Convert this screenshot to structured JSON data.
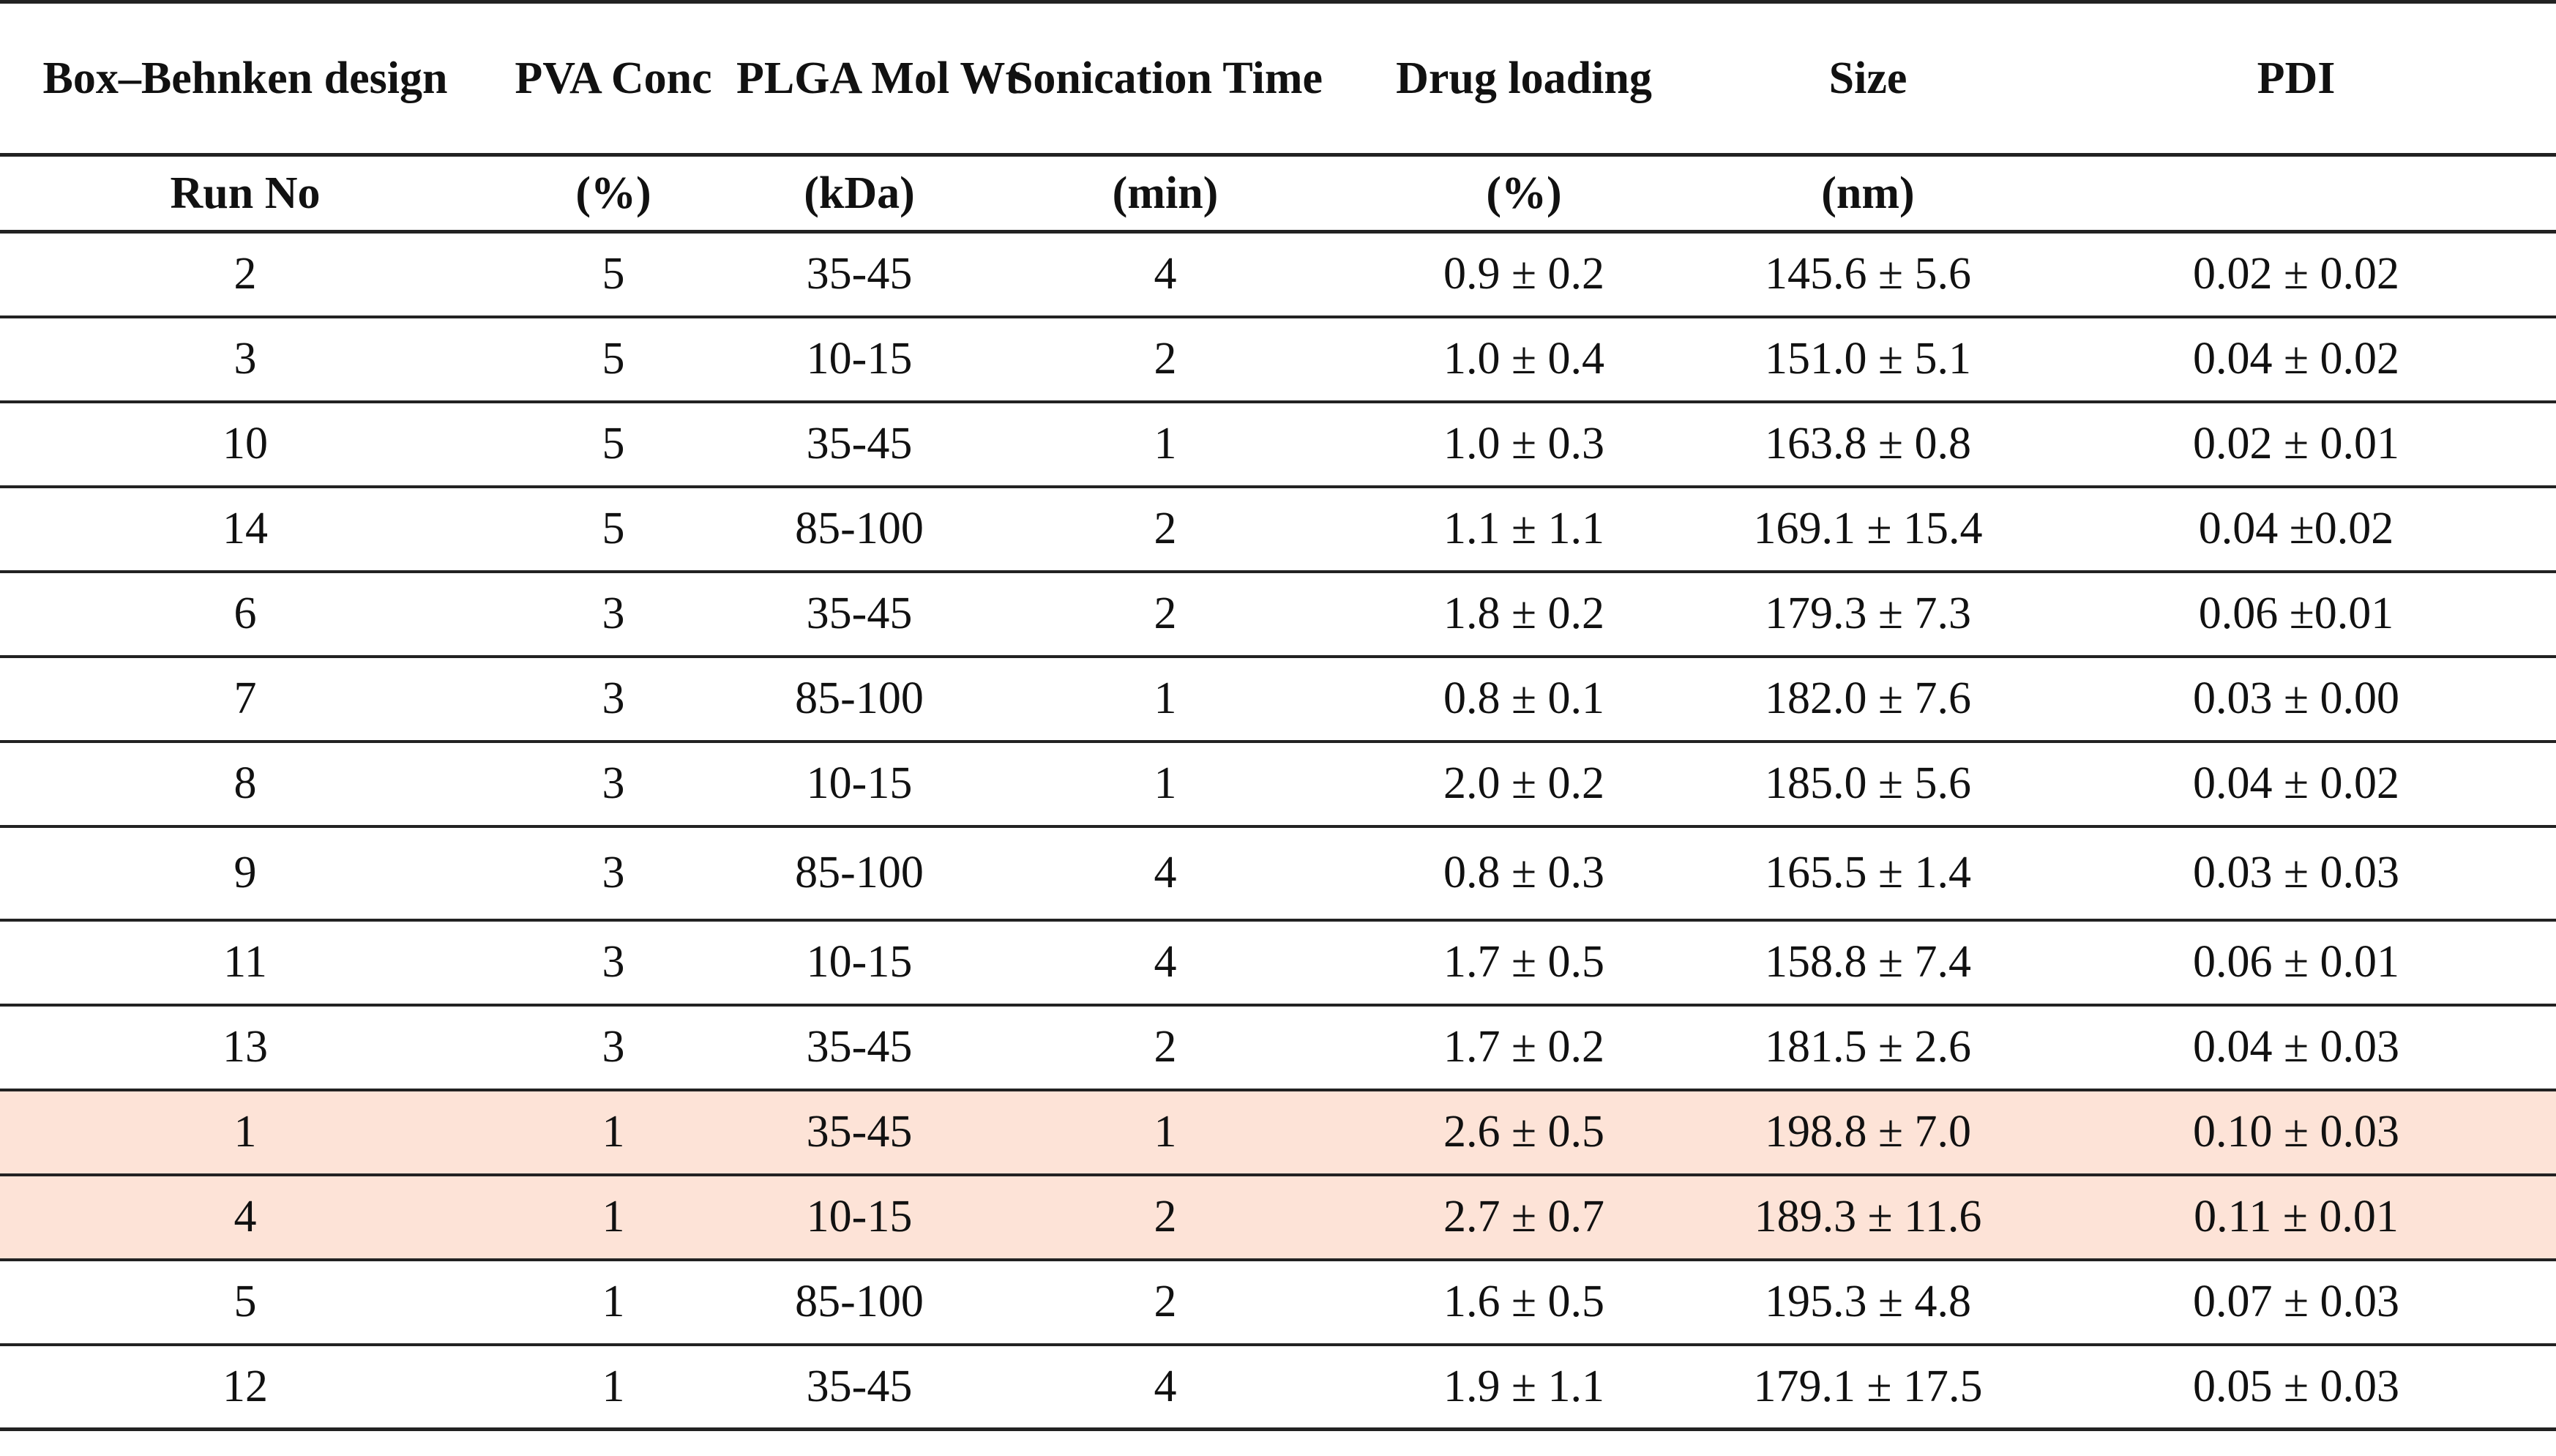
{
  "headers": [
    "Box–Behnken design",
    "PVA Conc",
    "PLGA Mol Wt",
    "Sonication Time",
    "Drug loading",
    "Size",
    "PDI"
  ],
  "units": [
    "Run No",
    "(%)",
    "(kDa)",
    "(min)",
    "(%)",
    "(nm)",
    ""
  ],
  "rows": [
    [
      "2",
      "5",
      "35-45",
      "4",
      "0.9 ± 0.2",
      "145.6 ± 5.6",
      "0.02 ± 0.02"
    ],
    [
      "3",
      "5",
      "10-15",
      "2",
      "1.0 ± 0.4",
      "151.0 ± 5.1",
      "0.04 ± 0.02"
    ],
    [
      "10",
      "5",
      "35-45",
      "1",
      "1.0 ± 0.3",
      "163.8 ± 0.8",
      "0.02 ± 0.01"
    ],
    [
      "14",
      "5",
      "85-100",
      "2",
      "1.1 ± 1.1",
      "169.1 ± 15.4",
      "0.04 ±0.02"
    ],
    [
      "6",
      "3",
      "35-45",
      "2",
      "1.8 ± 0.2",
      "179.3 ± 7.3",
      "0.06 ±0.01"
    ],
    [
      "7",
      "3",
      "85-100",
      "1",
      "0.8 ± 0.1",
      "182.0 ± 7.6",
      "0.03 ± 0.00"
    ],
    [
      "8",
      "3",
      "10-15",
      "1",
      "2.0 ± 0.2",
      "185.0 ± 5.6",
      "0.04 ± 0.02"
    ],
    [
      "9",
      "3",
      "85-100",
      "4",
      "0.8 ± 0.3",
      "165.5 ± 1.4",
      "0.03 ± 0.03"
    ],
    [
      "11",
      "3",
      "10-15",
      "4",
      "1.7 ± 0.5",
      "158.8 ± 7.4",
      "0.06 ± 0.01"
    ],
    [
      "13",
      "3",
      "35-45",
      "2",
      "1.7 ± 0.2",
      "181.5 ± 2.6",
      "0.04 ± 0.03"
    ],
    [
      "1",
      "1",
      "35-45",
      "1",
      "2.6 ± 0.5",
      "198.8 ± 7.0",
      "0.10 ± 0.03"
    ],
    [
      "4",
      "1",
      "10-15",
      "2",
      "2.7 ± 0.7",
      "189.3 ± 11.6",
      "0.11 ± 0.01"
    ],
    [
      "5",
      "1",
      "85-100",
      "2",
      "1.6 ± 0.5",
      "195.3 ± 4.8",
      "0.07 ± 0.03"
    ],
    [
      "12",
      "1",
      "35-45",
      "4",
      "1.9 ± 1.1",
      "179.1 ± 17.5",
      "0.05 ± 0.03"
    ]
  ],
  "highlight_color": "#fde3d7",
  "highlighted_rows": [
    10,
    11
  ]
}
